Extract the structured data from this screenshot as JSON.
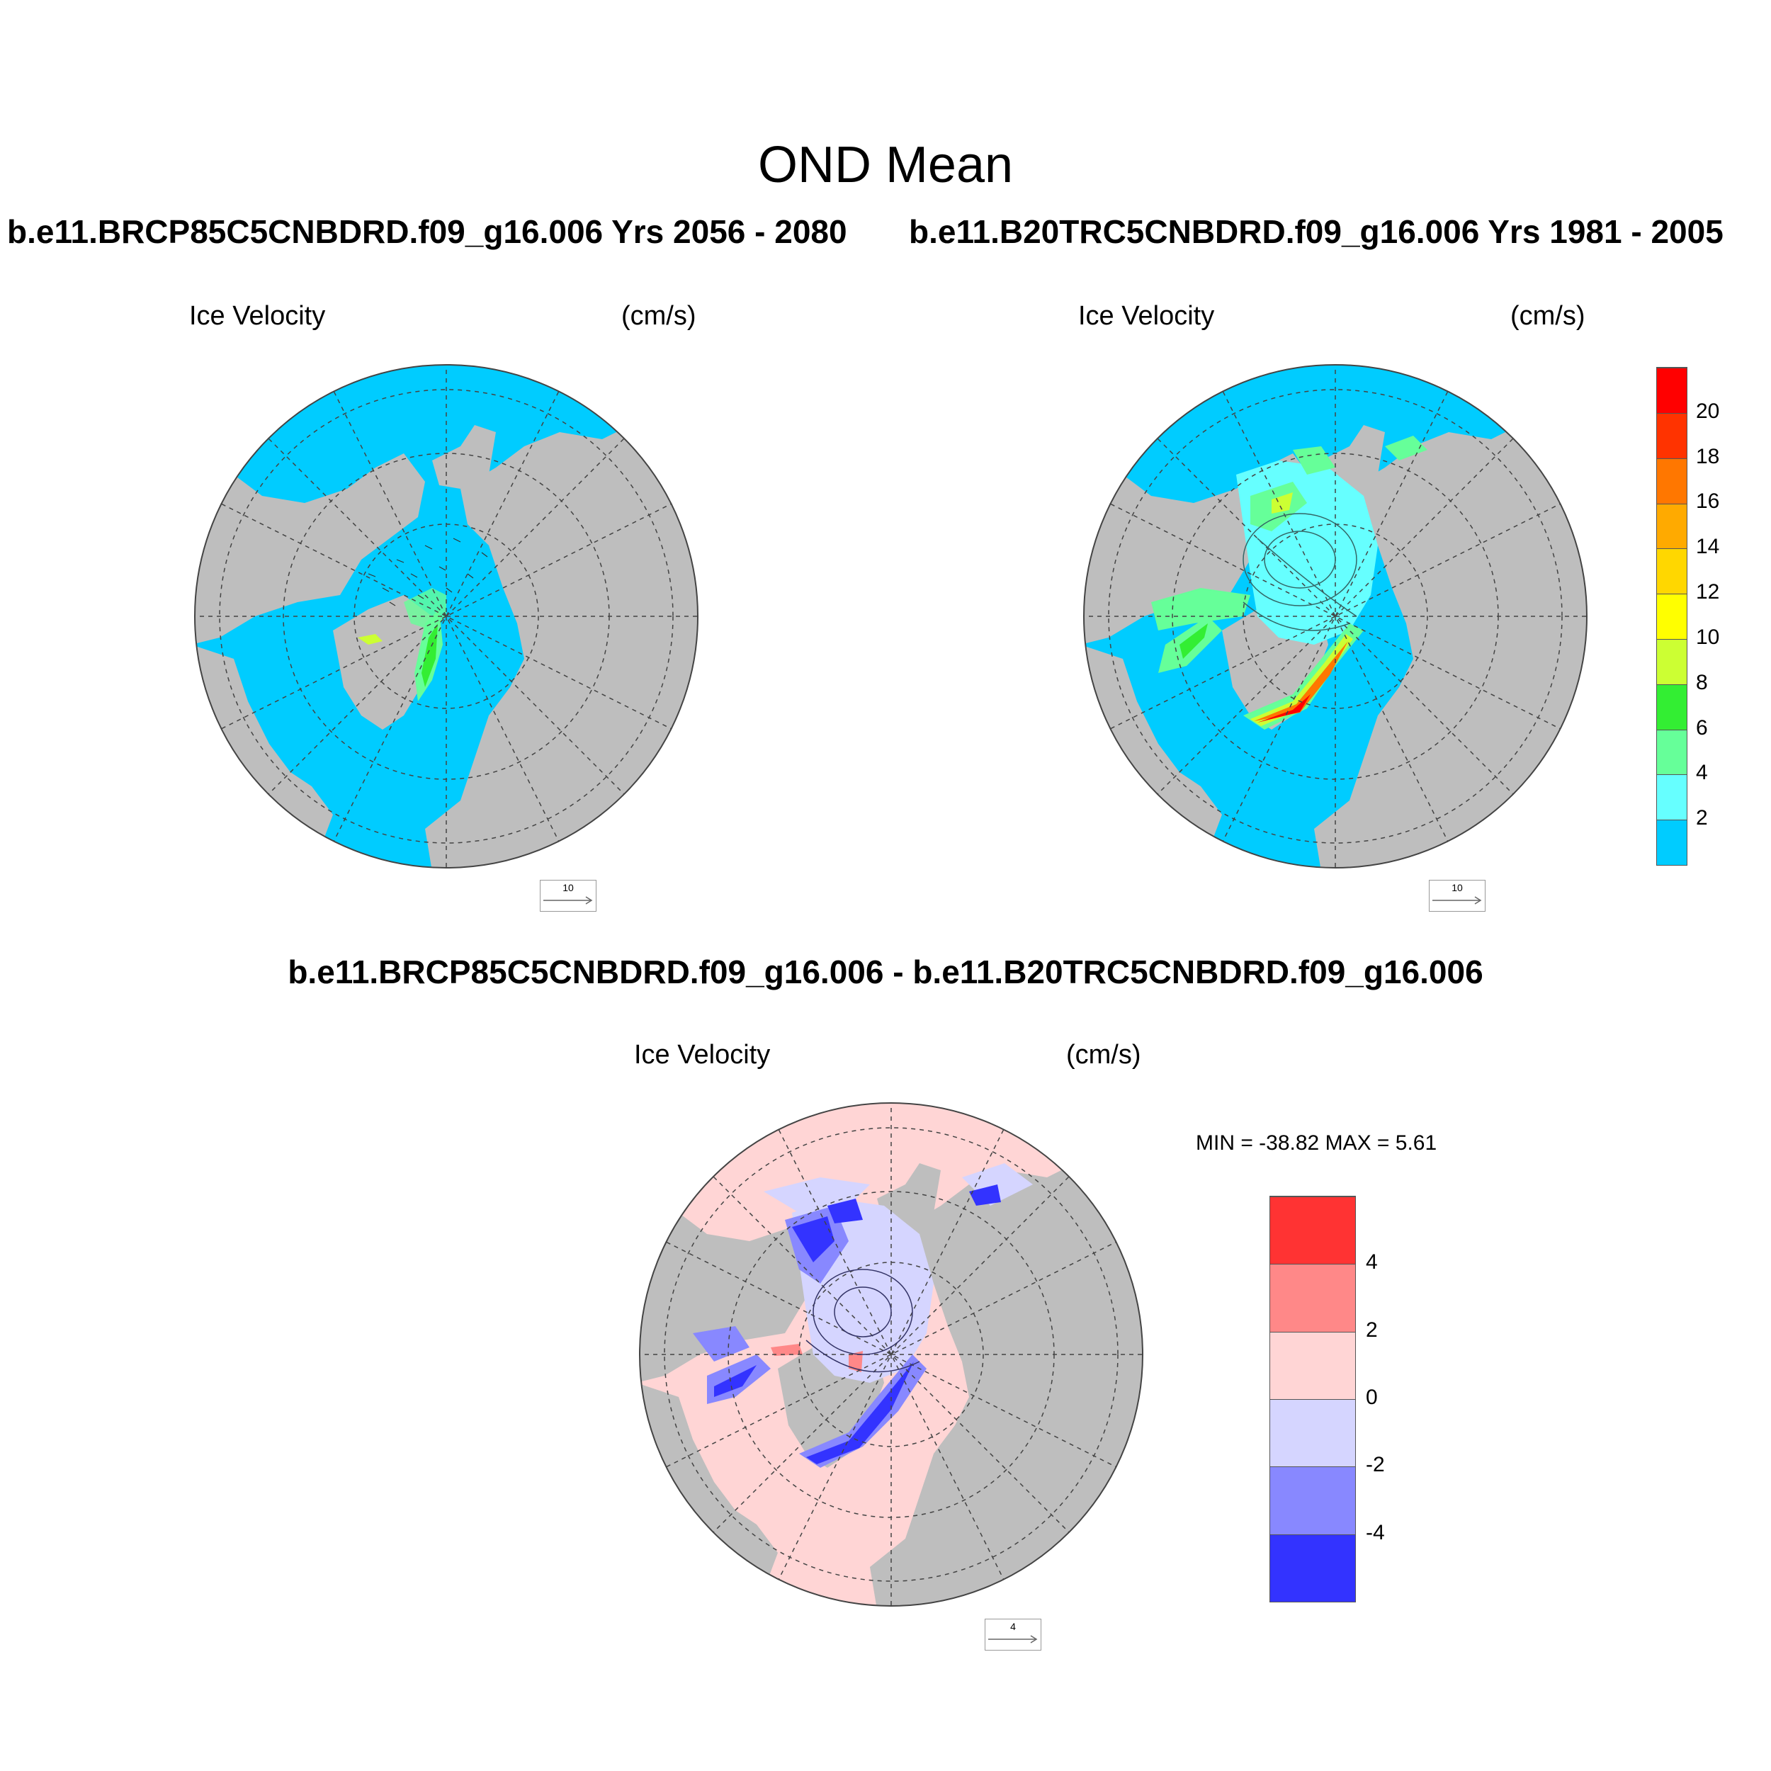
{
  "figure": {
    "title": "OND Mean",
    "panels": [
      {
        "case": "b.e11.BRCP85C5CNBDRD.f09_g16.006  Yrs 2056 - 2080",
        "variable": "Ice Velocity",
        "units": "(cm/s)",
        "reference_vector": "10"
      },
      {
        "case": "b.e11.B20TRC5CNBDRD.f09_g16.006  Yrs 1981 - 2005",
        "variable": "Ice Velocity",
        "units": "(cm/s)",
        "reference_vector": "10"
      },
      {
        "case": "b.e11.BRCP85C5CNBDRD.f09_g16.006 - b.e11.B20TRC5CNBDRD.f09_g16.006",
        "variable": "Ice Velocity",
        "units": "(cm/s)",
        "reference_vector": "4",
        "stats": "MIN = -38.82 MAX =   5.61"
      }
    ],
    "colors": {
      "ocean": "#00ccff",
      "land": "#bebebe",
      "diff_ocean": "#ffd5d5"
    },
    "labelbar_main": {
      "ticks": [
        "20",
        "18",
        "16",
        "14",
        "12",
        "10",
        "8",
        "6",
        "4",
        "2"
      ],
      "colors": [
        "#00ccff",
        "#66ffff",
        "#66ff99",
        "#33ee33",
        "#ccff33",
        "#ffff00",
        "#ffd700",
        "#ffaa00",
        "#ff7700",
        "#ff3300",
        "#ff0000"
      ]
    },
    "labelbar_diff": {
      "ticks": [
        "4",
        "2",
        "0",
        "-2",
        "-4"
      ],
      "colors": [
        "#3333ff",
        "#8888ff",
        "#d5d5ff",
        "#ffd5d5",
        "#ff8888",
        "#ff3333"
      ]
    }
  }
}
